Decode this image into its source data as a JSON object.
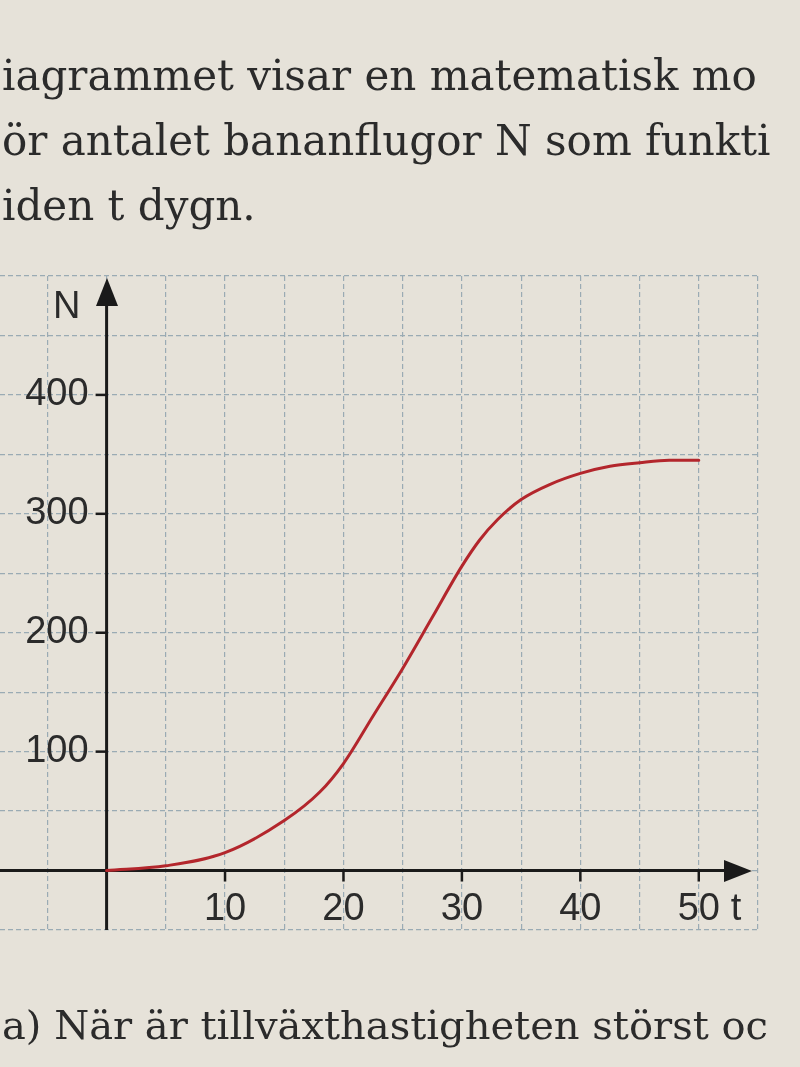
{
  "chart_data": {
    "type": "line",
    "title": "iagrammet visar en matematisk mo\nör antalet bananflugor N som funkti\niden t dygn.",
    "annotations": [
      "a) När är tillväxthastigheten störst oc"
    ],
    "xlabel": "t",
    "ylabel": "N",
    "x": [
      0,
      5,
      10,
      15,
      18,
      20,
      22.5,
      25,
      27.5,
      30,
      31.5,
      33,
      35,
      37.5,
      40,
      42.5,
      45,
      47.5,
      50
    ],
    "series": [
      {
        "color": "#b3262c",
        "values": [
          0,
          4,
          15,
          42,
          66,
          90,
          130,
          170,
          213,
          256,
          278,
          295,
          312,
          325,
          334,
          340,
          343,
          345,
          345
        ]
      }
    ],
    "xlim": [
      -9,
      55
    ],
    "ylim": [
      -50,
      500
    ],
    "xticks": [
      {
        "value": -5,
        "label": null
      },
      {
        "value": 0,
        "label": null
      },
      {
        "value": 5,
        "label": null
      },
      10,
      {
        "value": 15,
        "label": null
      },
      20,
      {
        "value": 25,
        "label": null
      },
      30,
      {
        "value": 35,
        "label": null
      },
      40,
      {
        "value": 45,
        "label": null
      },
      50,
      {
        "value": 55,
        "label": null
      }
    ],
    "yticks": [
      {
        "value": -50,
        "label": null
      },
      {
        "value": 0,
        "label": null
      },
      {
        "value": 50,
        "label": null
      },
      100,
      {
        "value": 150,
        "label": null
      },
      200,
      {
        "value": 250,
        "label": null
      },
      300,
      {
        "value": 350,
        "label": null
      },
      400,
      {
        "value": 450,
        "label": null
      },
      {
        "value": 500,
        "label": null
      }
    ],
    "grid": true
  }
}
